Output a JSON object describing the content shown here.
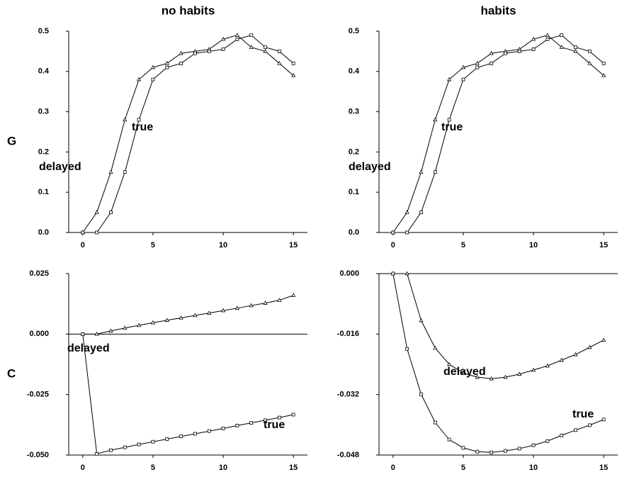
{
  "chart_data": [
    {
      "type": "line",
      "title": "no habits",
      "ylabel": "G",
      "x": [
        0,
        1,
        2,
        3,
        4,
        5,
        6,
        7,
        8,
        9,
        10,
        11,
        12,
        13,
        14,
        15
      ],
      "xlim": [
        -1,
        16
      ],
      "xticks": [
        0,
        5,
        10,
        15
      ],
      "ylim": [
        0,
        0.5
      ],
      "yticks": [
        {
          "value": 0,
          "label": "0.0"
        },
        {
          "value": 0.1,
          "label": "0.1"
        },
        {
          "value": 0.2,
          "label": "0.2"
        },
        {
          "value": 0.3,
          "label": "0.3"
        },
        {
          "value": 0.4,
          "label": "0.4"
        },
        {
          "value": 0.5,
          "label": "0.5"
        }
      ],
      "series": [
        {
          "name": "delayed",
          "color": "#000000",
          "marker": "triangle",
          "values": [
            0,
            0.05,
            0.15,
            0.28,
            0.38,
            0.41,
            0.42,
            0.445,
            0.45,
            0.455,
            0.48,
            0.49,
            0.46,
            0.45,
            0.42,
            0.39
          ]
        },
        {
          "name": "true",
          "color": "#000000",
          "marker": "square",
          "values": [
            0,
            0,
            0.05,
            0.15,
            0.28,
            0.38,
            0.41,
            0.42,
            0.445,
            0.45,
            0.455,
            0.48,
            0.49,
            0.46,
            0.45,
            0.42
          ]
        }
      ]
    },
    {
      "type": "line",
      "title": "habits",
      "x": [
        0,
        1,
        2,
        3,
        4,
        5,
        6,
        7,
        8,
        9,
        10,
        11,
        12,
        13,
        14,
        15
      ],
      "xlim": [
        -1,
        16
      ],
      "xticks": [
        0,
        5,
        10,
        15
      ],
      "ylim": [
        0,
        0.5
      ],
      "yticks": [
        {
          "value": 0,
          "label": "0.0"
        },
        {
          "value": 0.1,
          "label": "0.1"
        },
        {
          "value": 0.2,
          "label": "0.2"
        },
        {
          "value": 0.3,
          "label": "0.3"
        },
        {
          "value": 0.4,
          "label": "0.4"
        },
        {
          "value": 0.5,
          "label": "0.5"
        }
      ],
      "series": [
        {
          "name": "delayed",
          "color": "#000000",
          "marker": "triangle",
          "values": [
            0,
            0.05,
            0.15,
            0.28,
            0.38,
            0.41,
            0.42,
            0.445,
            0.45,
            0.455,
            0.48,
            0.49,
            0.46,
            0.45,
            0.42,
            0.39
          ]
        },
        {
          "name": "true",
          "color": "#000000",
          "marker": "square",
          "values": [
            0,
            0,
            0.05,
            0.15,
            0.28,
            0.38,
            0.41,
            0.42,
            0.445,
            0.45,
            0.455,
            0.48,
            0.49,
            0.46,
            0.45,
            0.42
          ]
        }
      ]
    },
    {
      "type": "line",
      "ylabel": "C",
      "x": [
        0,
        1,
        2,
        3,
        4,
        5,
        6,
        7,
        8,
        9,
        10,
        11,
        12,
        13,
        14,
        15
      ],
      "xlim": [
        -1,
        16
      ],
      "xticks": [
        0,
        5,
        10,
        15
      ],
      "ylim": [
        -0.05,
        0.025
      ],
      "yticks": [
        {
          "value": -0.05,
          "label": "-0.050"
        },
        {
          "value": -0.025,
          "label": "-0.025"
        },
        {
          "value": 0,
          "label": "0.000"
        },
        {
          "value": 0.025,
          "label": "0.025"
        }
      ],
      "series": [
        {
          "name": "delayed",
          "color": "#000000",
          "marker": "triangle",
          "values": [
            0,
            0,
            0.0013,
            0.0025,
            0.0036,
            0.0047,
            0.0057,
            0.0067,
            0.0077,
            0.0087,
            0.0097,
            0.0107,
            0.0118,
            0.0128,
            0.014,
            0.016
          ]
        },
        {
          "name": "true",
          "color": "#000000",
          "marker": "square",
          "values": [
            0,
            -0.0495,
            -0.048,
            -0.0468,
            -0.0456,
            -0.0445,
            -0.0434,
            -0.0423,
            -0.0412,
            -0.0401,
            -0.039,
            -0.0378,
            -0.0367,
            -0.0356,
            -0.0345,
            -0.0333
          ]
        }
      ]
    },
    {
      "type": "line",
      "x": [
        0,
        1,
        2,
        3,
        4,
        5,
        6,
        7,
        8,
        9,
        10,
        11,
        12,
        13,
        14,
        15
      ],
      "xlim": [
        -1,
        16
      ],
      "xticks": [
        0,
        5,
        10,
        15
      ],
      "ylim": [
        -0.048,
        0
      ],
      "yticks": [
        {
          "value": -0.048,
          "label": "-0.048"
        },
        {
          "value": -0.032,
          "label": "-0.032"
        },
        {
          "value": -0.016,
          "label": "-0.016"
        },
        {
          "value": 0,
          "label": "0.000"
        }
      ],
      "series": [
        {
          "name": "delayed",
          "color": "#000000",
          "marker": "triangle",
          "values": [
            0,
            0,
            -0.0124,
            -0.0197,
            -0.024,
            -0.0263,
            -0.0274,
            -0.0278,
            -0.0274,
            -0.0266,
            -0.0255,
            -0.0244,
            -0.0229,
            -0.0214,
            -0.0195,
            -0.0176
          ]
        },
        {
          "name": "true",
          "color": "#000000",
          "marker": "square",
          "values": [
            0,
            -0.0199,
            -0.0319,
            -0.0394,
            -0.0439,
            -0.0461,
            -0.0471,
            -0.0473,
            -0.0469,
            -0.0463,
            -0.0454,
            -0.0443,
            -0.0428,
            -0.0414,
            -0.0401,
            -0.0386
          ]
        }
      ]
    }
  ]
}
